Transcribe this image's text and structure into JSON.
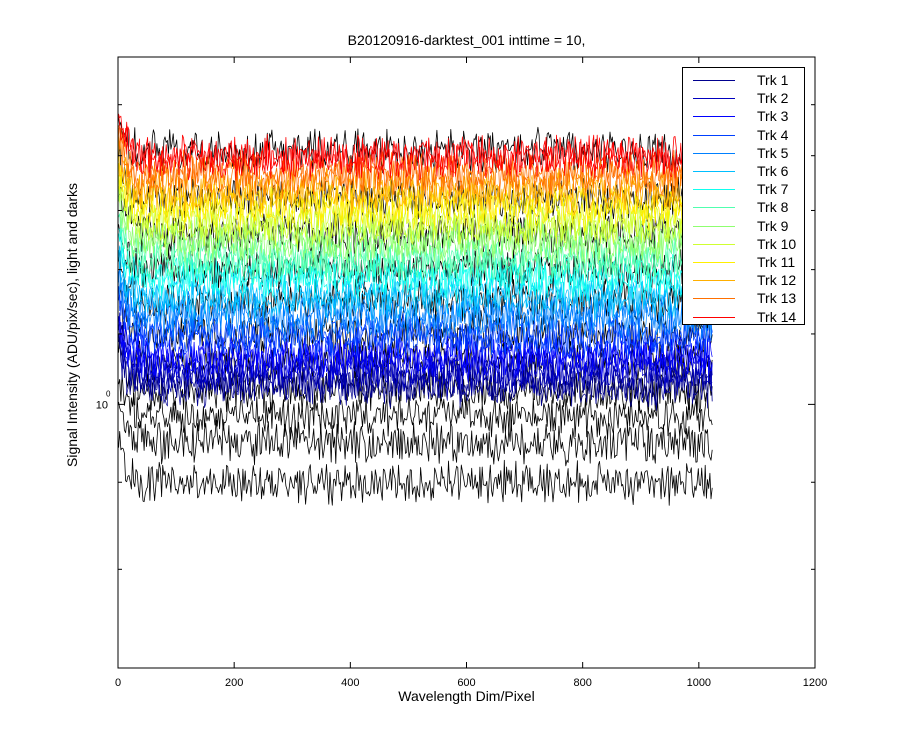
{
  "chart_data": {
    "type": "line",
    "title": "B20120916-darktest_001 inttime = 10,",
    "xlabel": "Wavelength Dim/Pixel",
    "ylabel": "Signal Intensity (ADU/pix/sec), light and darks",
    "xlim": [
      0,
      1200
    ],
    "xticks": [
      "0",
      "200",
      "400",
      "600",
      "800",
      "1000",
      "1200"
    ],
    "yscale": "log",
    "ylim": [
      0.7,
      1.6
    ],
    "yticks": [
      {
        "base": "10",
        "exp": "0",
        "value": 1
      }
    ],
    "grid": false,
    "legend_position": "top-right",
    "x_range": [
      1,
      1024
    ],
    "series": [
      {
        "name": "Trk 1",
        "color": "#00008f",
        "level": 1.03
      },
      {
        "name": "Trk 2",
        "color": "#0000bf",
        "level": 1.05
      },
      {
        "name": "Trk 3",
        "color": "#0000ff",
        "level": 1.07
      },
      {
        "name": "Trk 4",
        "color": "#0040ff",
        "level": 1.1
      },
      {
        "name": "Trk 5",
        "color": "#0080ff",
        "level": 1.13
      },
      {
        "name": "Trk 6",
        "color": "#00bfff",
        "level": 1.16
      },
      {
        "name": "Trk 7",
        "color": "#10ffef",
        "level": 1.19
      },
      {
        "name": "Trk 8",
        "color": "#50ffaf",
        "level": 1.22
      },
      {
        "name": "Trk 9",
        "color": "#8fff70",
        "level": 1.25
      },
      {
        "name": "Trk 10",
        "color": "#cfff30",
        "level": 1.28
      },
      {
        "name": "Trk 11",
        "color": "#ffef00",
        "level": 1.31
      },
      {
        "name": "Trk 12",
        "color": "#ffaf00",
        "level": 1.34
      },
      {
        "name": "Trk 13",
        "color": "#ff7000",
        "level": 1.37
      },
      {
        "name": "Trk 14",
        "color": "#ff0000",
        "level": 1.4
      }
    ],
    "dark_traces": [
      {
        "color": "#000000",
        "level": 0.9
      },
      {
        "color": "#000000",
        "level": 0.95
      },
      {
        "color": "#000000",
        "level": 0.985
      },
      {
        "color": "#000000",
        "level": 1.02
      },
      {
        "color": "#000000",
        "level": 1.06
      },
      {
        "color": "#000000",
        "level": 1.1
      },
      {
        "color": "#000000",
        "level": 1.15
      },
      {
        "color": "#000000",
        "level": 1.2
      },
      {
        "color": "#000000",
        "level": 1.26
      },
      {
        "color": "#000000",
        "level": 1.32
      },
      {
        "color": "#000000",
        "level": 1.41
      }
    ]
  }
}
